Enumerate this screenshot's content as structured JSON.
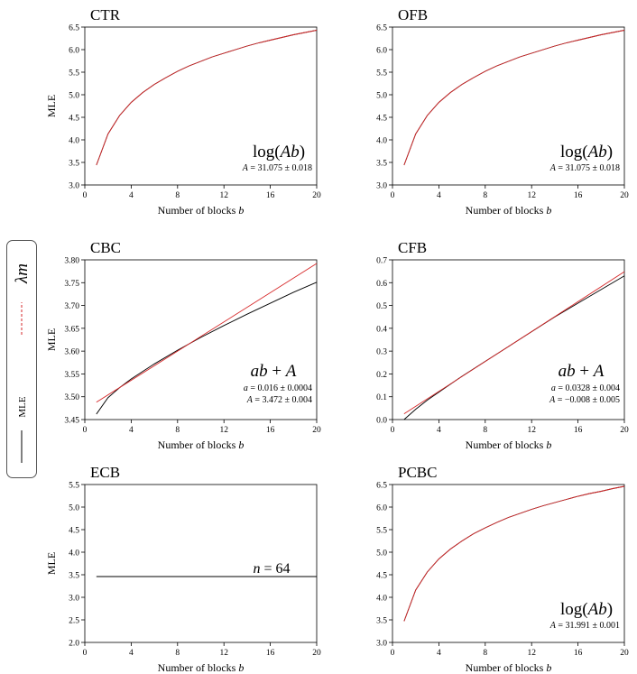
{
  "legend": {
    "entries": [
      {
        "name": "MLE",
        "color": "#000000",
        "style": "solid"
      },
      {
        "name": "λm",
        "color": "#d62728",
        "style": "dashed"
      }
    ]
  },
  "chart_data": [
    {
      "type": "line",
      "title": "CTR",
      "xlabel": "Number of blocks b",
      "ylabel": "MLE",
      "xlim": [
        0,
        20
      ],
      "ylim": [
        3.0,
        6.5
      ],
      "xticks": [
        0,
        4,
        8,
        12,
        16,
        20
      ],
      "yticks": [
        3.0,
        3.5,
        4.0,
        4.5,
        5.0,
        5.5,
        6.0,
        6.5
      ],
      "tick_decimals": 1,
      "model": "log(Ab)",
      "fit_params": [
        "A = 31.075 ± 0.018"
      ],
      "series": [
        {
          "name": "MLE",
          "color": "#000000",
          "x": [
            1,
            2,
            3,
            4,
            5,
            6,
            7,
            8,
            9,
            10,
            11,
            12,
            13,
            14,
            15,
            16,
            17,
            18,
            19,
            20
          ],
          "y": [
            3.44,
            4.13,
            4.54,
            4.83,
            5.05,
            5.23,
            5.38,
            5.52,
            5.64,
            5.74,
            5.84,
            5.92,
            6.0,
            6.08,
            6.15,
            6.21,
            6.27,
            6.33,
            6.38,
            6.43
          ]
        },
        {
          "name": "λm",
          "color": "#d62728",
          "x": [
            1,
            2,
            3,
            4,
            5,
            6,
            7,
            8,
            9,
            10,
            11,
            12,
            13,
            14,
            15,
            16,
            17,
            18,
            19,
            20
          ],
          "y": [
            3.44,
            4.13,
            4.54,
            4.83,
            5.05,
            5.23,
            5.38,
            5.52,
            5.64,
            5.74,
            5.84,
            5.92,
            6.0,
            6.08,
            6.15,
            6.21,
            6.27,
            6.33,
            6.38,
            6.43
          ]
        }
      ]
    },
    {
      "type": "line",
      "title": "OFB",
      "xlabel": "Number of blocks b",
      "ylabel": "",
      "xlim": [
        0,
        20
      ],
      "ylim": [
        3.0,
        6.5
      ],
      "xticks": [
        0,
        4,
        8,
        12,
        16,
        20
      ],
      "yticks": [
        3.0,
        3.5,
        4.0,
        4.5,
        5.0,
        5.5,
        6.0,
        6.5
      ],
      "tick_decimals": 1,
      "model": "log(Ab)",
      "fit_params": [
        "A = 31.075 ± 0.018"
      ],
      "series": [
        {
          "name": "MLE",
          "color": "#000000",
          "x": [
            1,
            2,
            3,
            4,
            5,
            6,
            7,
            8,
            9,
            10,
            11,
            12,
            13,
            14,
            15,
            16,
            17,
            18,
            19,
            20
          ],
          "y": [
            3.44,
            4.13,
            4.54,
            4.83,
            5.05,
            5.23,
            5.38,
            5.52,
            5.64,
            5.74,
            5.84,
            5.92,
            6.0,
            6.08,
            6.15,
            6.21,
            6.27,
            6.33,
            6.38,
            6.43
          ]
        },
        {
          "name": "λm",
          "color": "#d62728",
          "x": [
            1,
            2,
            3,
            4,
            5,
            6,
            7,
            8,
            9,
            10,
            11,
            12,
            13,
            14,
            15,
            16,
            17,
            18,
            19,
            20
          ],
          "y": [
            3.44,
            4.13,
            4.54,
            4.83,
            5.05,
            5.23,
            5.38,
            5.52,
            5.64,
            5.74,
            5.84,
            5.92,
            6.0,
            6.08,
            6.15,
            6.21,
            6.27,
            6.33,
            6.38,
            6.43
          ]
        }
      ]
    },
    {
      "type": "line",
      "title": "CBC",
      "xlabel": "Number of blocks b",
      "ylabel": "MLE",
      "xlim": [
        0,
        20
      ],
      "ylim": [
        3.45,
        3.8
      ],
      "xticks": [
        0,
        4,
        8,
        12,
        16,
        20
      ],
      "yticks": [
        3.45,
        3.5,
        3.55,
        3.6,
        3.65,
        3.7,
        3.75,
        3.8
      ],
      "tick_decimals": 2,
      "model": "ab + A",
      "fit_params": [
        "a = 0.016 ± 0.0004",
        "A = 3.472 ± 0.004"
      ],
      "series": [
        {
          "name": "MLE",
          "color": "#000000",
          "x": [
            1,
            2,
            3,
            4,
            6,
            8,
            10,
            12,
            14,
            16,
            18,
            20
          ],
          "y": [
            3.462,
            3.498,
            3.52,
            3.539,
            3.572,
            3.602,
            3.63,
            3.656,
            3.681,
            3.705,
            3.729,
            3.751
          ]
        },
        {
          "name": "λm",
          "color": "#d62728",
          "x": [
            1,
            20
          ],
          "y": [
            3.488,
            3.792
          ]
        }
      ]
    },
    {
      "type": "line",
      "title": "CFB",
      "xlabel": "Number of blocks b",
      "ylabel": "",
      "xlim": [
        0,
        20
      ],
      "ylim": [
        0.0,
        0.7
      ],
      "xticks": [
        0,
        4,
        8,
        12,
        16,
        20
      ],
      "yticks": [
        0.0,
        0.1,
        0.2,
        0.3,
        0.4,
        0.5,
        0.6,
        0.7
      ],
      "tick_decimals": 1,
      "model": "ab + A",
      "fit_params": [
        "a = 0.0328 ± 0.004",
        "A = −0.008 ± 0.005"
      ],
      "series": [
        {
          "name": "MLE",
          "color": "#000000",
          "x": [
            1,
            2,
            3,
            4,
            6,
            8,
            10,
            12,
            14,
            16,
            18,
            20
          ],
          "y": [
            0.0,
            0.045,
            0.085,
            0.12,
            0.19,
            0.255,
            0.32,
            0.385,
            0.45,
            0.51,
            0.57,
            0.63
          ]
        },
        {
          "name": "λm",
          "color": "#d62728",
          "x": [
            1,
            20
          ],
          "y": [
            0.025,
            0.648
          ]
        }
      ]
    },
    {
      "type": "line",
      "title": "ECB",
      "xlabel": "Number of blocks b",
      "ylabel": "MLE",
      "xlim": [
        0,
        20
      ],
      "ylim": [
        2.0,
        5.5
      ],
      "xticks": [
        0,
        4,
        8,
        12,
        16,
        20
      ],
      "yticks": [
        2.0,
        2.5,
        3.0,
        3.5,
        4.0,
        4.5,
        5.0,
        5.5
      ],
      "tick_decimals": 1,
      "model": "n = 64",
      "fit_params": [],
      "series": [
        {
          "name": "MLE",
          "color": "#000000",
          "x": [
            1,
            20
          ],
          "y": [
            3.46,
            3.46
          ]
        }
      ]
    },
    {
      "type": "line",
      "title": "PCBC",
      "xlabel": "Number of blocks b",
      "ylabel": "",
      "xlim": [
        0,
        20
      ],
      "ylim": [
        3.0,
        6.5
      ],
      "xticks": [
        0,
        4,
        8,
        12,
        16,
        20
      ],
      "yticks": [
        3.0,
        3.5,
        4.0,
        4.5,
        5.0,
        5.5,
        6.0,
        6.5
      ],
      "tick_decimals": 1,
      "model": "log(Ab)",
      "fit_params": [
        "A = 31.991 ± 0.001"
      ],
      "series": [
        {
          "name": "MLE",
          "color": "#000000",
          "x": [
            1,
            2,
            3,
            4,
            5,
            6,
            7,
            8,
            9,
            10,
            11,
            12,
            13,
            14,
            15,
            16,
            17,
            18,
            19,
            20
          ],
          "y": [
            3.47,
            4.16,
            4.56,
            4.85,
            5.07,
            5.25,
            5.41,
            5.54,
            5.66,
            5.77,
            5.86,
            5.95,
            6.03,
            6.1,
            6.17,
            6.24,
            6.3,
            6.35,
            6.41,
            6.46
          ]
        },
        {
          "name": "λm",
          "color": "#d62728",
          "x": [
            1,
            2,
            3,
            4,
            5,
            6,
            7,
            8,
            9,
            10,
            11,
            12,
            13,
            14,
            15,
            16,
            17,
            18,
            19,
            20
          ],
          "y": [
            3.47,
            4.16,
            4.56,
            4.85,
            5.07,
            5.25,
            5.41,
            5.54,
            5.66,
            5.77,
            5.86,
            5.95,
            6.03,
            6.1,
            6.17,
            6.24,
            6.3,
            6.35,
            6.41,
            6.46
          ]
        }
      ]
    }
  ]
}
